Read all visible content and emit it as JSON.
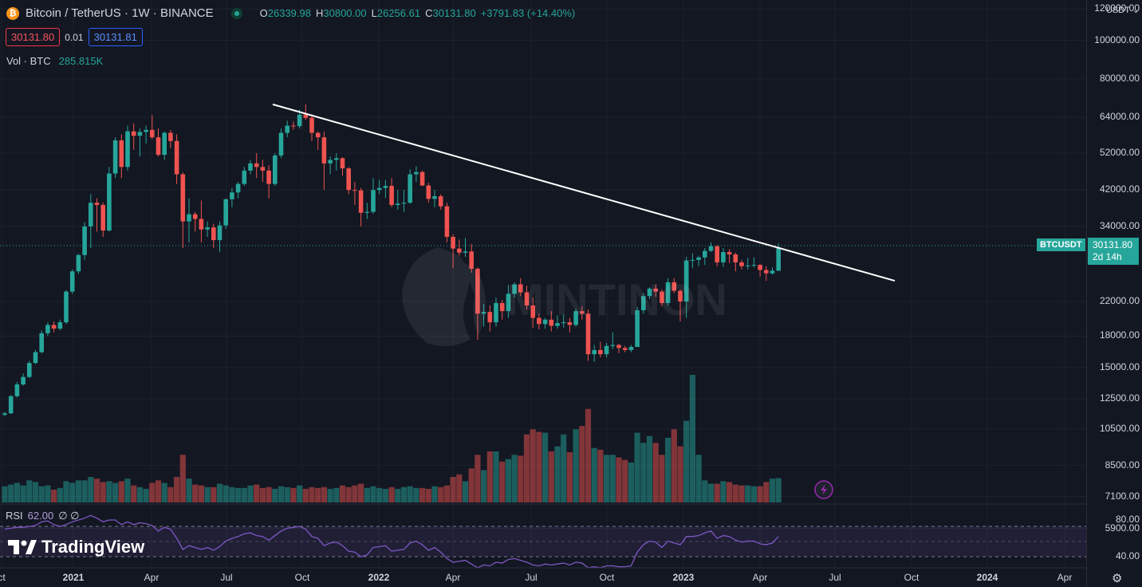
{
  "header": {
    "coin_glyph": "₿",
    "title": "Bitcoin / TetherUS · 1W · BINANCE",
    "ohlc": [
      {
        "k": "O",
        "v": "26339.98"
      },
      {
        "k": "H",
        "v": "30800.00"
      },
      {
        "k": "L",
        "v": "26256.61"
      },
      {
        "k": "C",
        "v": "30131.80"
      },
      {
        "k": "",
        "v": "+3791.83 (+14.40%)"
      }
    ]
  },
  "trade": {
    "sell": "30131.80",
    "spread": "0.01",
    "buy": "30131.81"
  },
  "volume": {
    "label": "Vol · BTC",
    "value": "285.815K"
  },
  "rsi": {
    "label": "RSI",
    "value": "62.00",
    "extra": "∅ ∅"
  },
  "brand": {
    "name": "TradingView"
  },
  "watermark": "MINTINON",
  "price_axis": {
    "currency": "USDT",
    "labels": [
      "120000.00",
      "100000.00",
      "80000.00",
      "64000.00",
      "52000.00",
      "42000.00",
      "34000.00",
      "22000.00",
      "18000.00",
      "15000.00",
      "12500.00",
      "10500.00",
      "8500.00",
      "7100.00",
      "5900.00"
    ],
    "rsi_labels": [
      "80.00",
      "40.00"
    ]
  },
  "price_tag": {
    "symbol": "BTCUSDT",
    "price": "30131.80",
    "countdown": "2d 14h"
  },
  "time_axis": [
    "ct",
    "2021",
    "Apr",
    "Jul",
    "Oct",
    "2022",
    "Apr",
    "Jul",
    "Oct",
    "2023",
    "Apr",
    "Jul",
    "Oct",
    "2024",
    "Apr"
  ],
  "colors": {
    "up": "#26a69a",
    "down": "#ef5350",
    "background": "#131722",
    "rsi_line": "#7e57c2",
    "trendline": "#ffffff"
  },
  "chart_data": {
    "type": "candlestick",
    "scale": "log",
    "ylim": [
      11000,
      140000
    ],
    "candles": [
      [
        11400,
        11600,
        11300,
        11500
      ],
      [
        11500,
        12800,
        11450,
        12700
      ],
      [
        12700,
        13800,
        12600,
        13600
      ],
      [
        13600,
        14500,
        13500,
        14200
      ],
      [
        14200,
        15600,
        14100,
        15400
      ],
      [
        15400,
        16600,
        15300,
        16400
      ],
      [
        16400,
        18600,
        16300,
        18300
      ],
      [
        18300,
        19500,
        18000,
        19200
      ],
      [
        19200,
        19600,
        18400,
        18800
      ],
      [
        18800,
        19800,
        18600,
        19500
      ],
      [
        19500,
        23500,
        19300,
        23300
      ],
      [
        23300,
        26500,
        23000,
        26200
      ],
      [
        26200,
        29000,
        25800,
        28800
      ],
      [
        28800,
        34800,
        28000,
        34000
      ],
      [
        34000,
        41000,
        30000,
        39000
      ],
      [
        39000,
        40000,
        33000,
        38500
      ],
      [
        38500,
        39000,
        32000,
        33200
      ],
      [
        33200,
        48000,
        33000,
        46200
      ],
      [
        46200,
        57000,
        45000,
        56000
      ],
      [
        56000,
        58000,
        45000,
        48000
      ],
      [
        48000,
        61000,
        47000,
        59000
      ],
      [
        59000,
        61800,
        53000,
        57500
      ],
      [
        57500,
        60000,
        51000,
        58800
      ],
      [
        58800,
        61000,
        55000,
        59500
      ],
      [
        59500,
        64800,
        56500,
        57000
      ],
      [
        57000,
        60000,
        51000,
        51500
      ],
      [
        51500,
        59000,
        50000,
        58500
      ],
      [
        58500,
        59500,
        53500,
        55800
      ],
      [
        55800,
        58000,
        43500,
        46000
      ],
      [
        46000,
        46500,
        30000,
        35000
      ],
      [
        35000,
        40000,
        31000,
        36500
      ],
      [
        36500,
        37000,
        33000,
        35500
      ],
      [
        35500,
        39500,
        31000,
        33400
      ],
      [
        33400,
        35000,
        32000,
        33800
      ],
      [
        33800,
        34500,
        30000,
        31400
      ],
      [
        31400,
        35000,
        29300,
        34200
      ],
      [
        34200,
        40000,
        33500,
        39800
      ],
      [
        39800,
        42500,
        38000,
        41400
      ],
      [
        41400,
        44000,
        40000,
        43500
      ],
      [
        43500,
        48000,
        43000,
        47000
      ],
      [
        47000,
        50000,
        46000,
        49000
      ],
      [
        49000,
        52000,
        45000,
        48000
      ],
      [
        48000,
        50000,
        44000,
        47000
      ],
      [
        47000,
        48500,
        40000,
        43500
      ],
      [
        43500,
        52000,
        43000,
        51300
      ],
      [
        51300,
        60000,
        50500,
        58500
      ],
      [
        58500,
        62800,
        57000,
        61000
      ],
      [
        61000,
        62500,
        59500,
        60800
      ],
      [
        60800,
        67000,
        60000,
        65000
      ],
      [
        65000,
        69000,
        63000,
        63800
      ],
      [
        63800,
        65000,
        55800,
        58500
      ],
      [
        58500,
        59000,
        53000,
        57000
      ],
      [
        57000,
        59000,
        42000,
        49000
      ],
      [
        49000,
        51000,
        46000,
        50000
      ],
      [
        50000,
        52000,
        47000,
        50500
      ],
      [
        50500,
        50800,
        45600,
        47600
      ],
      [
        47600,
        48000,
        41000,
        42000
      ],
      [
        42000,
        44000,
        38500,
        41900
      ],
      [
        41900,
        42500,
        34000,
        36800
      ],
      [
        36800,
        39000,
        35500,
        37000
      ],
      [
        37000,
        45000,
        36600,
        42000
      ],
      [
        42000,
        44500,
        41000,
        42500
      ],
      [
        42500,
        44500,
        40100,
        43000
      ],
      [
        43000,
        45000,
        38000,
        38500
      ],
      [
        38500,
        42000,
        37500,
        38800
      ],
      [
        38800,
        42000,
        37000,
        39000
      ],
      [
        39000,
        47400,
        38800,
        46000
      ],
      [
        46000,
        48200,
        44000,
        46600
      ],
      [
        46600,
        47000,
        43000,
        43100
      ],
      [
        43100,
        43800,
        39000,
        39900
      ],
      [
        39900,
        42000,
        38000,
        40500
      ],
      [
        40500,
        41000,
        37500,
        38200
      ],
      [
        38200,
        39000,
        31000,
        32000
      ],
      [
        32000,
        32500,
        26700,
        29900
      ],
      [
        29900,
        31500,
        28700,
        29200
      ],
      [
        29200,
        31800,
        28500,
        29400
      ],
      [
        29400,
        30700,
        26000,
        26600
      ],
      [
        26600,
        26800,
        17600,
        20500
      ],
      [
        20500,
        21700,
        19000,
        20700
      ],
      [
        20700,
        21500,
        18500,
        19500
      ],
      [
        19500,
        22500,
        19000,
        21800
      ],
      [
        21800,
        22200,
        19800,
        20800
      ],
      [
        20800,
        24200,
        20000,
        23000
      ],
      [
        23000,
        24600,
        22500,
        24300
      ],
      [
        24300,
        25200,
        22700,
        23200
      ],
      [
        23200,
        24100,
        21000,
        21500
      ],
      [
        21500,
        22500,
        18900,
        20000
      ],
      [
        20000,
        20500,
        18700,
        19300
      ],
      [
        19300,
        20000,
        18800,
        19800
      ],
      [
        19800,
        20800,
        18500,
        19100
      ],
      [
        19100,
        20300,
        18800,
        19400
      ],
      [
        19400,
        20400,
        18900,
        19500
      ],
      [
        19500,
        20000,
        18400,
        19200
      ],
      [
        19200,
        21100,
        19000,
        20800
      ],
      [
        20800,
        21400,
        19800,
        20500
      ],
      [
        20500,
        21000,
        15600,
        16200
      ],
      [
        16200,
        17100,
        15500,
        16600
      ],
      [
        16600,
        17400,
        15900,
        16200
      ],
      [
        16200,
        17300,
        15900,
        17000
      ],
      [
        17000,
        18400,
        16700,
        17100
      ],
      [
        17100,
        17200,
        16300,
        16800
      ],
      [
        16800,
        17000,
        16400,
        16600
      ],
      [
        16600,
        17100,
        16400,
        16900
      ],
      [
        16900,
        21300,
        16900,
        20900
      ],
      [
        20900,
        23100,
        20500,
        22700
      ],
      [
        22700,
        23900,
        22300,
        23700
      ],
      [
        23700,
        24300,
        22600,
        23300
      ],
      [
        23300,
        23600,
        21400,
        21800
      ],
      [
        21800,
        25200,
        21500,
        24600
      ],
      [
        24600,
        25200,
        23100,
        23400
      ],
      [
        23400,
        23600,
        19600,
        22000
      ],
      [
        22000,
        28500,
        20000,
        27900
      ],
      [
        27900,
        29100,
        26700,
        28000
      ],
      [
        28000,
        28700,
        27000,
        28400
      ],
      [
        28400,
        30000,
        27200,
        29500
      ],
      [
        29500,
        31000,
        29300,
        30300
      ],
      [
        30300,
        30500,
        27000,
        27600
      ],
      [
        27600,
        30000,
        26900,
        29300
      ],
      [
        29300,
        29800,
        27500,
        28900
      ],
      [
        28900,
        29200,
        26200,
        27600
      ],
      [
        27600,
        28000,
        26500,
        27000
      ],
      [
        27000,
        28300,
        26500,
        27100
      ],
      [
        27100,
        28400,
        26800,
        27200
      ],
      [
        27200,
        27300,
        25400,
        26400
      ],
      [
        26400,
        27000,
        24800,
        25900
      ],
      [
        25900,
        26800,
        25700,
        26300
      ],
      [
        26300,
        30800,
        26250,
        30131
      ]
    ],
    "volumes_k": [
      190,
      210,
      230,
      200,
      260,
      240,
      190,
      200,
      150,
      170,
      250,
      230,
      260,
      260,
      300,
      280,
      240,
      250,
      230,
      250,
      280,
      200,
      180,
      160,
      230,
      260,
      230,
      180,
      300,
      560,
      280,
      210,
      200,
      180,
      180,
      220,
      200,
      180,
      170,
      170,
      200,
      210,
      170,
      180,
      160,
      190,
      180,
      170,
      200,
      160,
      180,
      170,
      180,
      160,
      170,
      200,
      180,
      200,
      220,
      170,
      190,
      170,
      160,
      180,
      160,
      180,
      190,
      170,
      170,
      160,
      190,
      180,
      200,
      300,
      330,
      250,
      400,
      560,
      380,
      600,
      600,
      480,
      510,
      560,
      550,
      800,
      860,
      830,
      820,
      600,
      660,
      800,
      590,
      860,
      900,
      1100,
      640,
      620,
      560,
      560,
      530,
      500,
      470,
      820,
      700,
      780,
      700,
      560,
      760,
      860,
      660,
      960,
      1500,
      560,
      260,
      220,
      220,
      250,
      240,
      210,
      200,
      200,
      190,
      190,
      240,
      280,
      285.815
    ],
    "rsi": [
      70,
      71,
      72,
      72,
      73,
      74,
      78,
      79,
      75,
      73,
      75,
      78,
      80,
      82,
      85,
      82,
      78,
      80,
      80,
      75,
      78,
      75,
      77,
      76,
      74,
      68,
      72,
      70,
      60,
      48,
      52,
      50,
      48,
      50,
      47,
      51,
      57,
      60,
      62,
      65,
      66,
      63,
      62,
      58,
      63,
      68,
      71,
      72,
      73,
      70,
      62,
      60,
      52,
      55,
      56,
      52,
      46,
      45,
      40,
      42,
      50,
      51,
      52,
      46,
      47,
      48,
      55,
      57,
      53,
      47,
      50,
      45,
      38,
      34,
      35,
      36,
      32,
      28,
      31,
      30,
      34,
      33,
      37,
      38,
      36,
      34,
      31,
      30,
      32,
      31,
      32,
      33,
      31,
      34,
      33,
      28,
      29,
      28,
      30,
      30,
      29,
      29,
      30,
      45,
      53,
      57,
      56,
      50,
      57,
      55,
      53,
      62,
      62,
      63,
      66,
      68,
      60,
      63,
      62,
      58,
      56,
      57,
      57,
      54,
      53,
      55,
      62
    ],
    "trendline": {
      "from": {
        "x": "2021-09-06",
        "y": 69000
      },
      "to": {
        "x": "2023-09-11",
        "y": 24800
      }
    }
  }
}
